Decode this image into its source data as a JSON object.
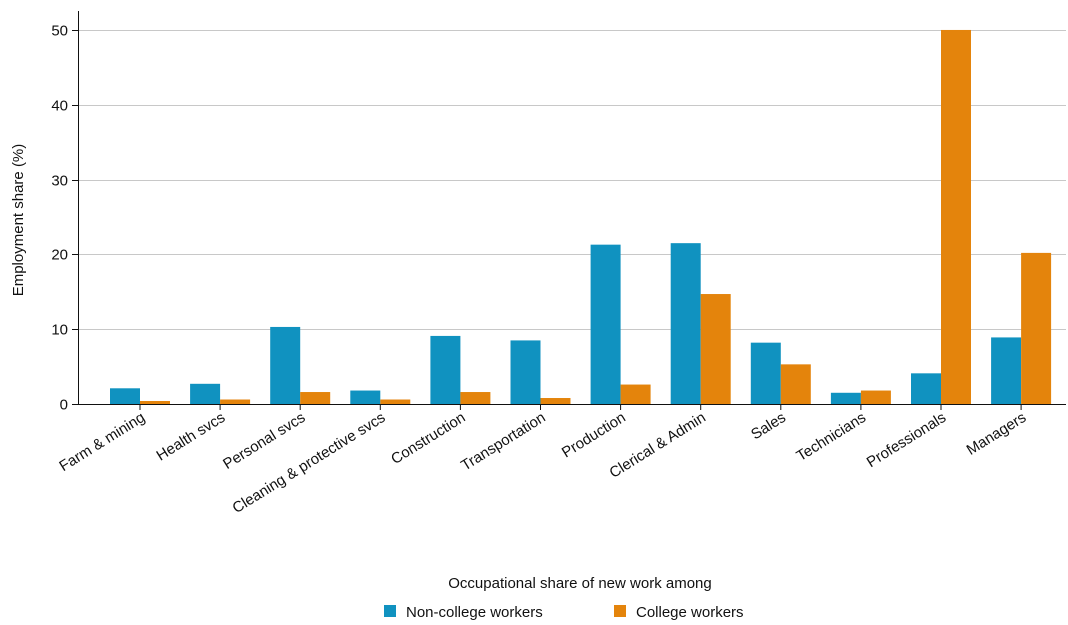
{
  "chart_data": {
    "type": "bar",
    "categories": [
      "Farm & mining",
      "Health svcs",
      "Personal svcs",
      "Cleaning & protective svcs",
      "Construction",
      "Transportation",
      "Production",
      "Clerical & Admin",
      "Sales",
      "Technicians",
      "Professionals",
      "Managers"
    ],
    "series": [
      {
        "name": "Non-college workers",
        "color": "#1092C0",
        "values": [
          2.1,
          2.7,
          10.3,
          1.8,
          9.1,
          8.5,
          21.3,
          21.5,
          8.2,
          1.5,
          4.1,
          8.9
        ]
      },
      {
        "name": "College workers",
        "color": "#E4840C",
        "values": [
          0.4,
          0.6,
          1.6,
          0.6,
          1.6,
          0.8,
          2.6,
          14.7,
          5.3,
          1.8,
          50.0,
          20.2
        ]
      }
    ],
    "title": "",
    "xlabel": "",
    "ylabel": "Employment share (%)",
    "ylim": [
      0,
      52
    ],
    "yticks": [
      0,
      10,
      20,
      30,
      40,
      50
    ],
    "grid": true,
    "legend": {
      "title": "Occupational share of new work among",
      "placement": "bottom"
    }
  }
}
